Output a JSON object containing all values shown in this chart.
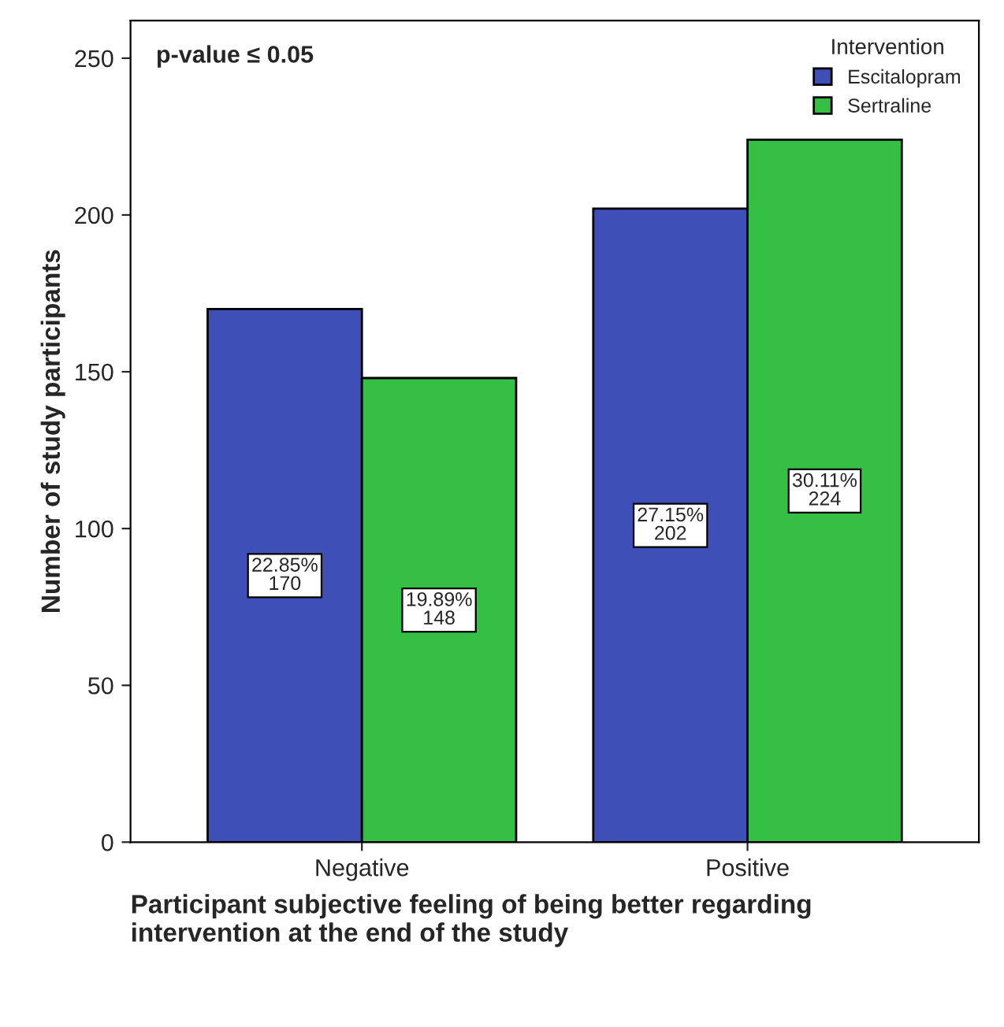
{
  "chart_data": {
    "type": "bar",
    "xlabel": "Participant subjective feeling of being better regarding\nintervention at the end of the study",
    "ylabel": "Number of study participants",
    "legend_title": "Intervention",
    "annotations": [
      "p-value ≤ 0.05"
    ],
    "categories": [
      "Negative",
      "Positive"
    ],
    "series": [
      {
        "name": "Escitalopram",
        "color": "#3f4fb8",
        "values": [
          170,
          202
        ],
        "value_labels": [
          "22.85%\n170",
          "27.15%\n202"
        ]
      },
      {
        "name": "Sertraline",
        "color": "#35bf45",
        "values": [
          148,
          224
        ],
        "value_labels": [
          "19.89%\n148",
          "30.11%\n224"
        ]
      }
    ],
    "ylim": [
      0,
      262
    ],
    "yticks": [
      0,
      50,
      100,
      150,
      200,
      250
    ],
    "grid": false,
    "legend": "top right"
  }
}
